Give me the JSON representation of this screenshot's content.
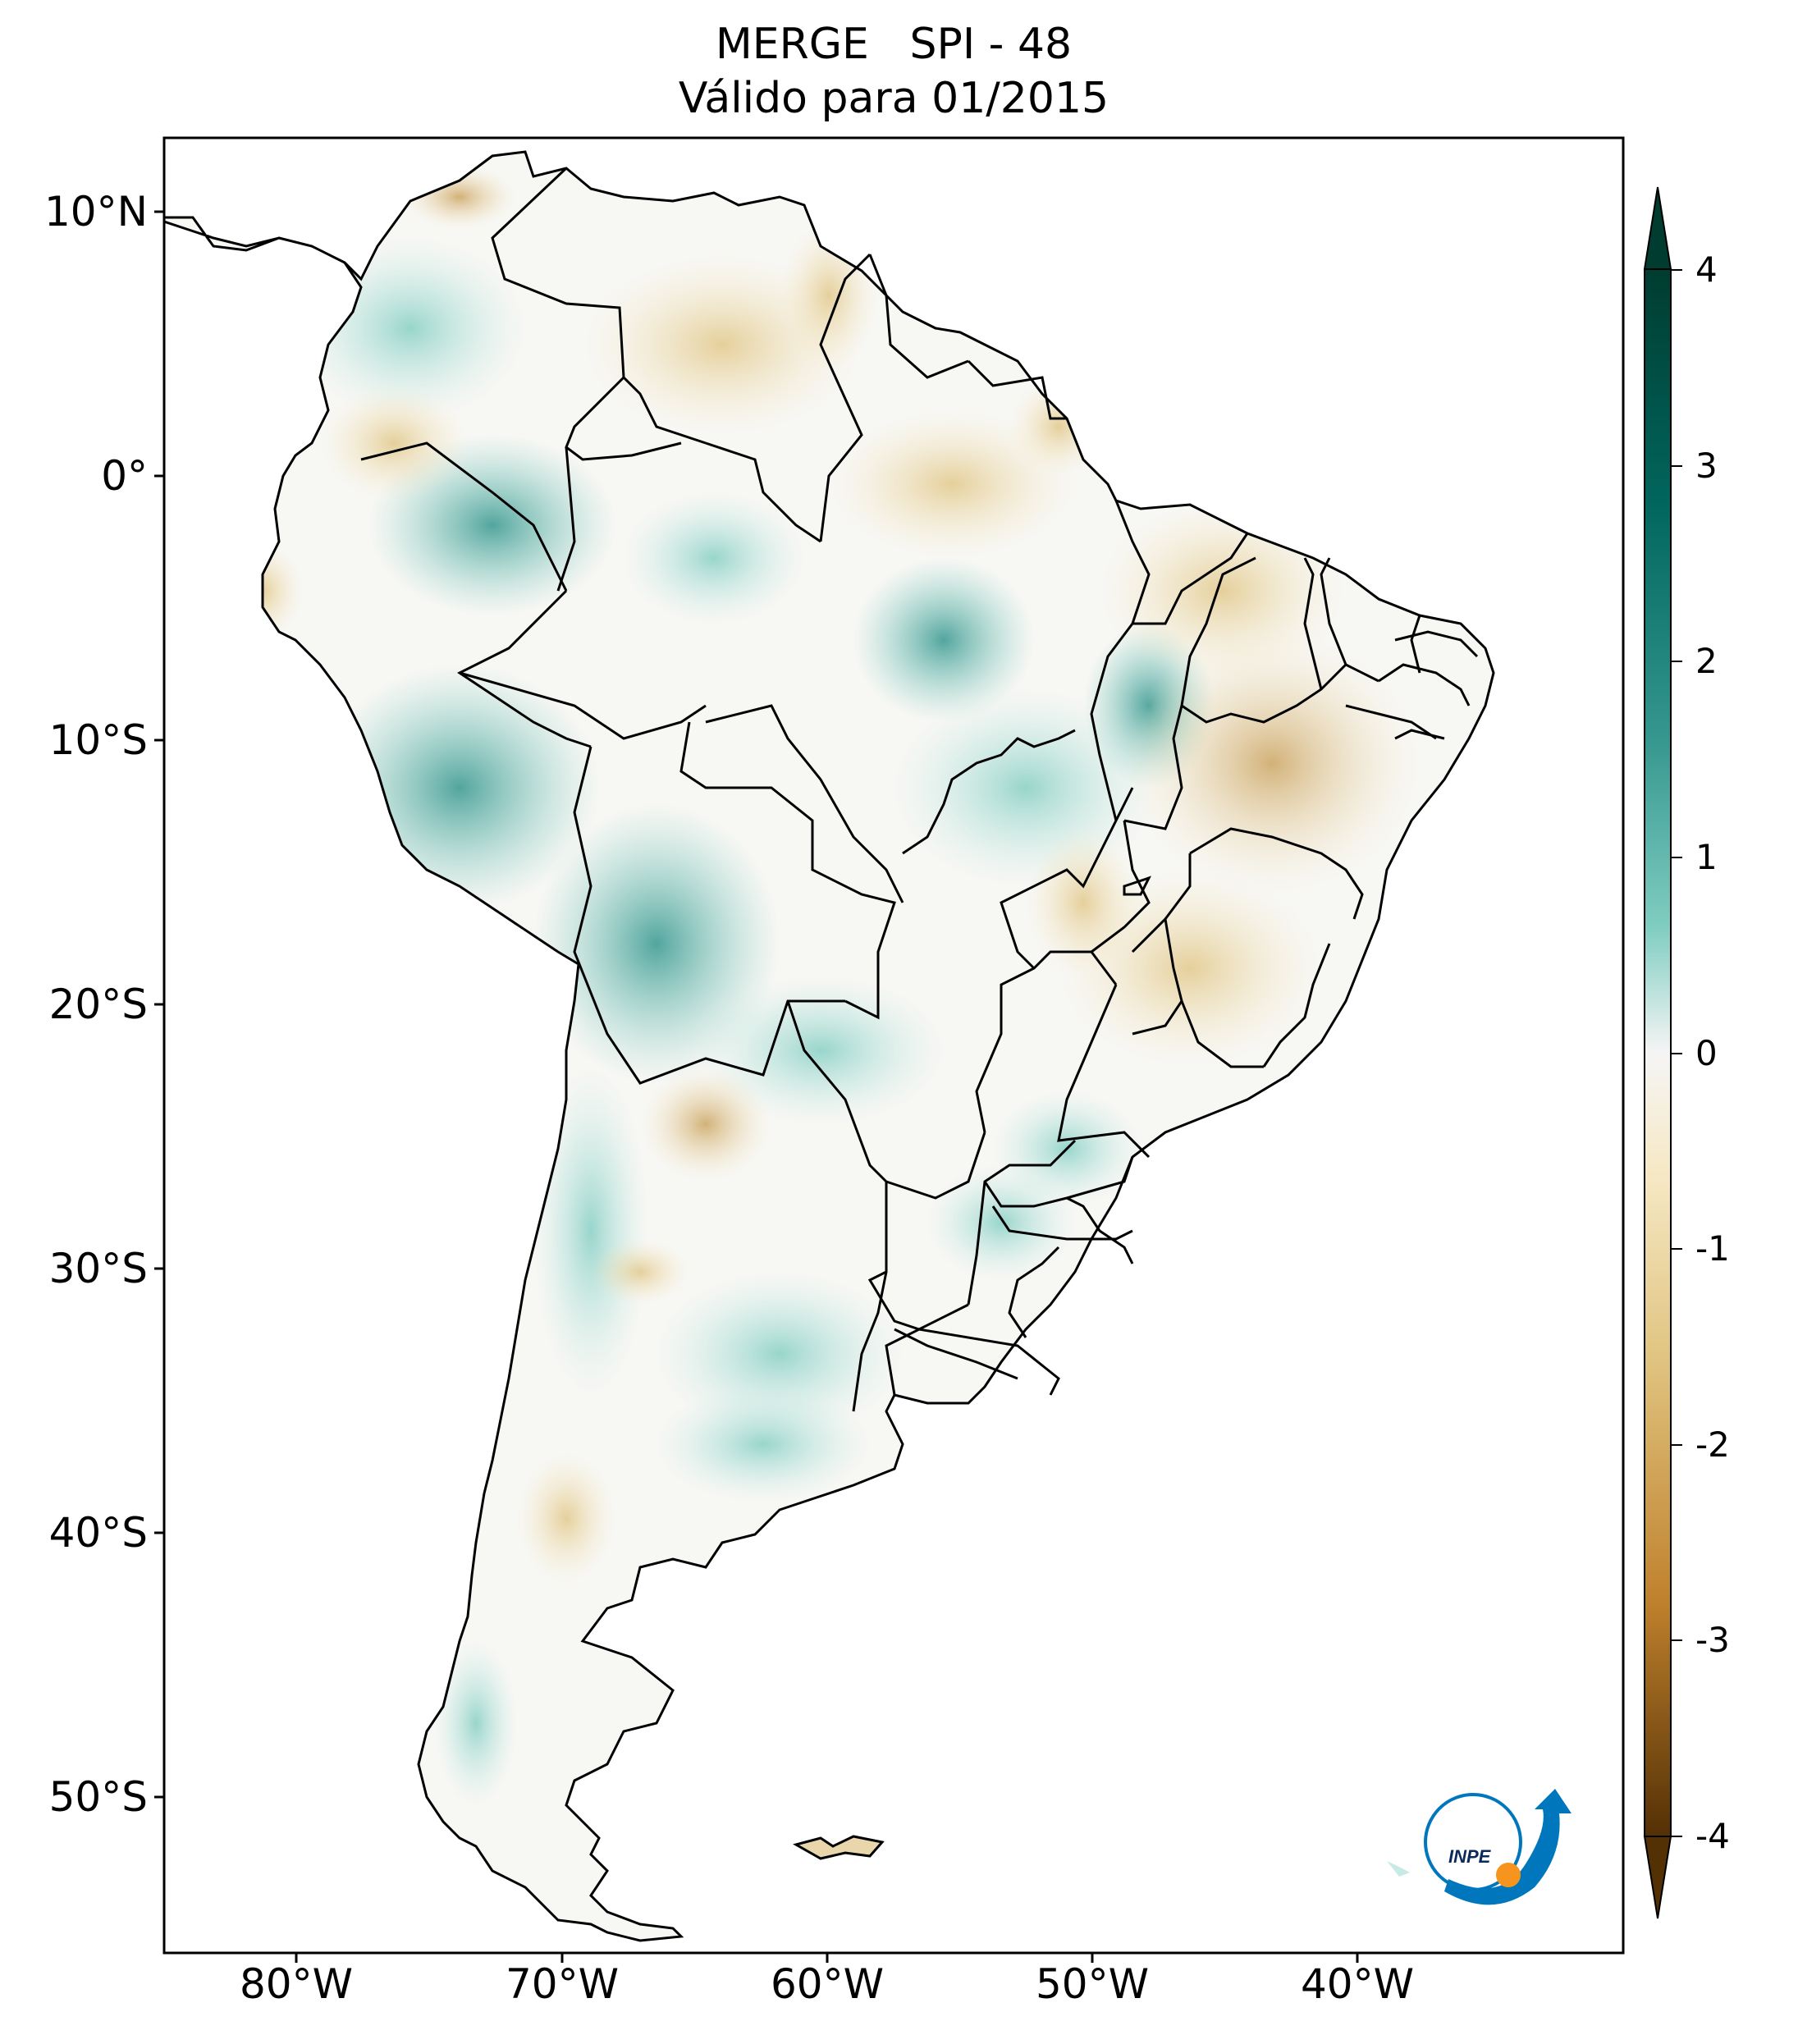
{
  "title": {
    "line1": "MERGE   SPI - 48",
    "line2": "Válido para 01/2015"
  },
  "map": {
    "region": "South America",
    "lat_ticks": [
      "10°N",
      "0°",
      "10°S",
      "20°S",
      "30°S",
      "40°S",
      "50°S"
    ],
    "lon_ticks": [
      "80°W",
      "70°W",
      "60°W",
      "50°W",
      "40°W"
    ],
    "extent": {
      "lon": [
        -85,
        -30
      ],
      "lat": [
        -56,
        13
      ]
    }
  },
  "colorbar": {
    "ticks": [
      "4",
      "3",
      "2",
      "1",
      "0",
      "-1",
      "-2",
      "-3",
      "-4"
    ],
    "range": [
      -4,
      4
    ],
    "colors": {
      "wet_max": "#003c30",
      "wet_mid": "#35978f",
      "wet_low": "#c7eae5",
      "neutral": "#f5f5f5",
      "dry_low": "#f6e8c3",
      "dry_mid": "#dfc27d",
      "dry_max": "#543005"
    }
  },
  "logo": {
    "text": "INPE",
    "colors": {
      "blue": "#0077bd",
      "orange": "#f7941d"
    }
  }
}
